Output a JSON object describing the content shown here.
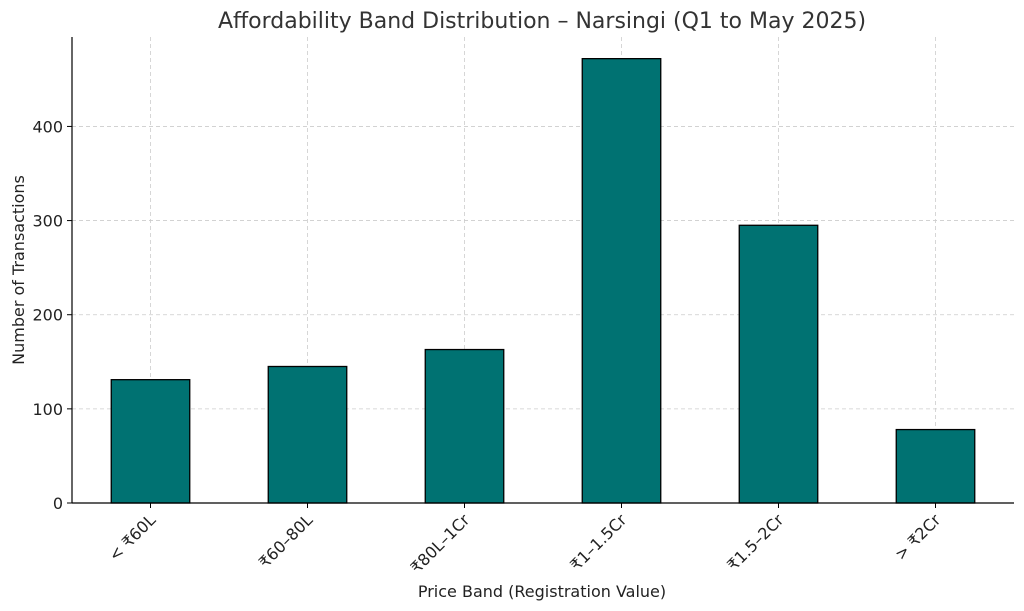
{
  "chart_data": {
    "type": "bar",
    "title": "Affordability Band Distribution – Narsingi (Q1 to May 2025)",
    "xlabel": "Price Band (Registration Value)",
    "ylabel": "Number of Transactions",
    "categories": [
      "< ₹60L",
      "₹60–80L",
      "₹80L–1Cr",
      "₹1–1.5Cr",
      "₹1.5–2Cr",
      "> ₹2Cr"
    ],
    "values": [
      131,
      145,
      163,
      472,
      295,
      78
    ],
    "ylim": [
      0,
      495
    ],
    "yticks": [
      0,
      100,
      200,
      300,
      400
    ],
    "grid": true,
    "bar_color": "#007272"
  }
}
